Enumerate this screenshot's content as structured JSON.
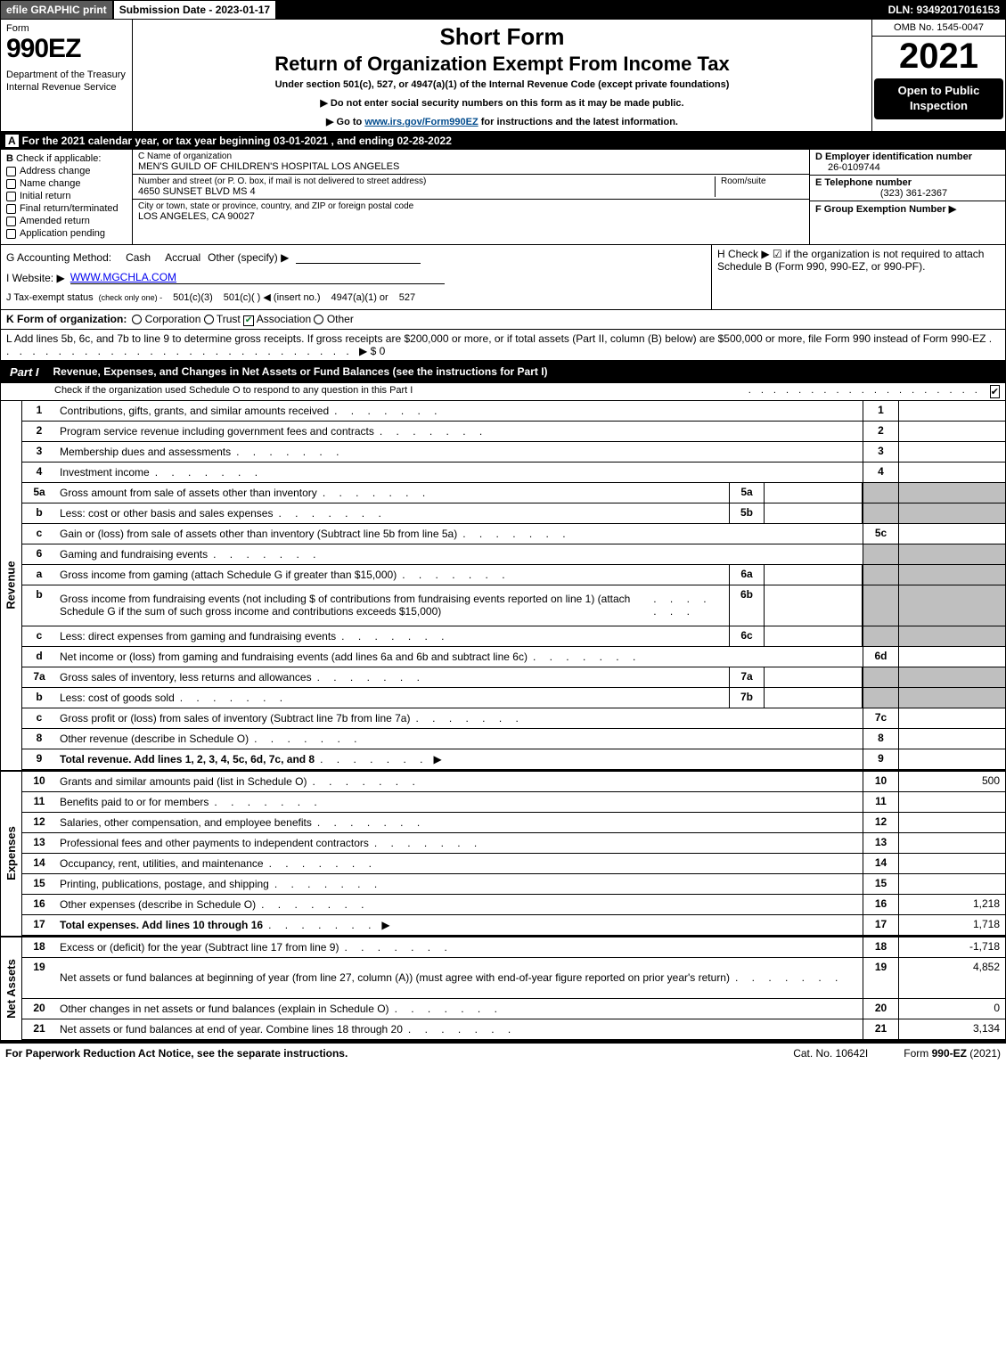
{
  "topbar": {
    "efile": "efile GRAPHIC print",
    "submission": "Submission Date - 2023-01-17",
    "dln": "DLN: 93492017016153"
  },
  "header": {
    "form_word": "Form",
    "form_num": "990EZ",
    "dept": "Department of the Treasury\nInternal Revenue Service",
    "short_form": "Short Form",
    "return_title": "Return of Organization Exempt From Income Tax",
    "under": "Under section 501(c), 527, or 4947(a)(1) of the Internal Revenue Code (except private foundations)",
    "ssn": "▶ Do not enter social security numbers on this form as it may be made public.",
    "goto_pre": "▶ Go to ",
    "goto_link": "www.irs.gov/Form990EZ",
    "goto_post": " for instructions and the latest information.",
    "omb": "OMB No. 1545-0047",
    "year": "2021",
    "badge": "Open to Public Inspection"
  },
  "rowA": {
    "label": "A",
    "text": "For the 2021 calendar year, or tax year beginning 03-01-2021 , and ending 02-28-2022"
  },
  "colB": {
    "label": "B",
    "title": "Check if applicable:",
    "items": [
      "Address change",
      "Name change",
      "Initial return",
      "Final return/terminated",
      "Amended return",
      "Application pending"
    ]
  },
  "colC": {
    "name_lbl": "C Name of organization",
    "name": "MEN'S GUILD OF CHILDREN'S HOSPITAL LOS ANGELES",
    "street_lbl": "Number and street (or P. O. box, if mail is not delivered to street address)",
    "room_lbl": "Room/suite",
    "street": "4650 SUNSET BLVD MS 4",
    "city_lbl": "City or town, state or province, country, and ZIP or foreign postal code",
    "city": "LOS ANGELES, CA  90027"
  },
  "colDEF": {
    "d_lbl": "D Employer identification number",
    "d_val": "26-0109744",
    "e_lbl": "E Telephone number",
    "e_val": "(323) 361-2367",
    "f_lbl": "F Group Exemption Number   ▶"
  },
  "ghrow": {
    "g_label": "G Accounting Method:",
    "g_cash": "Cash",
    "g_accrual": "Accrual",
    "g_other": "Other (specify) ▶",
    "h_text": "H  Check ▶ ☑ if the organization is not required to attach Schedule B (Form 990, 990-EZ, or 990-PF)."
  },
  "rowI": {
    "label": "I Website: ▶",
    "val": "WWW.MGCHLA.COM"
  },
  "rowJ": {
    "label": "J Tax-exempt status",
    "note": "(check only one) -",
    "o1": "501(c)(3)",
    "o2": "501(c)(  ) ◀ (insert no.)",
    "o3": "4947(a)(1) or",
    "o4": "527"
  },
  "rowK": {
    "label": "K Form of organization:",
    "opts": [
      "Corporation",
      "Trust",
      "Association",
      "Other"
    ],
    "checked_idx": 2
  },
  "rowL": {
    "text": "L Add lines 5b, 6c, and 7b to line 9 to determine gross receipts. If gross receipts are $200,000 or more, or if total assets (Part II, column (B) below) are $500,000 or more, file Form 990 instead of Form 990-EZ",
    "val": "▶ $ 0"
  },
  "part1": {
    "tag": "Part I",
    "title": "Revenue, Expenses, and Changes in Net Assets or Fund Balances (see the instructions for Part I)",
    "check_line": "Check if the organization used Schedule O to respond to any question in this Part I"
  },
  "sections": {
    "revenue": {
      "label": "Revenue",
      "lines": [
        {
          "n": "1",
          "d": "Contributions, gifts, grants, and similar amounts received",
          "rn": "1",
          "rv": ""
        },
        {
          "n": "2",
          "d": "Program service revenue including government fees and contracts",
          "rn": "2",
          "rv": ""
        },
        {
          "n": "3",
          "d": "Membership dues and assessments",
          "rn": "3",
          "rv": ""
        },
        {
          "n": "4",
          "d": "Investment income",
          "rn": "4",
          "rv": ""
        },
        {
          "n": "5a",
          "d": "Gross amount from sale of assets other than inventory",
          "sn": "5a",
          "sv": "",
          "shade": true
        },
        {
          "n": "b",
          "d": "Less: cost or other basis and sales expenses",
          "sn": "5b",
          "sv": "",
          "shade": true
        },
        {
          "n": "c",
          "d": "Gain or (loss) from sale of assets other than inventory (Subtract line 5b from line 5a)",
          "rn": "5c",
          "rv": ""
        },
        {
          "n": "6",
          "d": "Gaming and fundraising events",
          "shade": true,
          "noamt": true
        },
        {
          "n": "a",
          "d": "Gross income from gaming (attach Schedule G if greater than $15,000)",
          "sn": "6a",
          "sv": "",
          "shade": true
        },
        {
          "n": "b",
          "d": "Gross income from fundraising events (not including $                of contributions from fundraising events reported on line 1) (attach Schedule G if the sum of such gross income and contributions exceeds $15,000)",
          "sn": "6b",
          "sv": "",
          "shade": true,
          "tall": true
        },
        {
          "n": "c",
          "d": "Less: direct expenses from gaming and fundraising events",
          "sn": "6c",
          "sv": "",
          "shade": true
        },
        {
          "n": "d",
          "d": "Net income or (loss) from gaming and fundraising events (add lines 6a and 6b and subtract line 6c)",
          "rn": "6d",
          "rv": ""
        },
        {
          "n": "7a",
          "d": "Gross sales of inventory, less returns and allowances",
          "sn": "7a",
          "sv": "",
          "shade": true
        },
        {
          "n": "b",
          "d": "Less: cost of goods sold",
          "sn": "7b",
          "sv": "",
          "shade": true
        },
        {
          "n": "c",
          "d": "Gross profit or (loss) from sales of inventory (Subtract line 7b from line 7a)",
          "rn": "7c",
          "rv": ""
        },
        {
          "n": "8",
          "d": "Other revenue (describe in Schedule O)",
          "rn": "8",
          "rv": ""
        },
        {
          "n": "9",
          "d": "Total revenue. Add lines 1, 2, 3, 4, 5c, 6d, 7c, and 8",
          "rn": "9",
          "rv": "",
          "arrow": true,
          "bold": true
        }
      ]
    },
    "expenses": {
      "label": "Expenses",
      "lines": [
        {
          "n": "10",
          "d": "Grants and similar amounts paid (list in Schedule O)",
          "rn": "10",
          "rv": "500"
        },
        {
          "n": "11",
          "d": "Benefits paid to or for members",
          "rn": "11",
          "rv": ""
        },
        {
          "n": "12",
          "d": "Salaries, other compensation, and employee benefits",
          "rn": "12",
          "rv": ""
        },
        {
          "n": "13",
          "d": "Professional fees and other payments to independent contractors",
          "rn": "13",
          "rv": ""
        },
        {
          "n": "14",
          "d": "Occupancy, rent, utilities, and maintenance",
          "rn": "14",
          "rv": ""
        },
        {
          "n": "15",
          "d": "Printing, publications, postage, and shipping",
          "rn": "15",
          "rv": ""
        },
        {
          "n": "16",
          "d": "Other expenses (describe in Schedule O)",
          "rn": "16",
          "rv": "1,218"
        },
        {
          "n": "17",
          "d": "Total expenses. Add lines 10 through 16",
          "rn": "17",
          "rv": "1,718",
          "arrow": true,
          "bold": true
        }
      ]
    },
    "netassets": {
      "label": "Net Assets",
      "lines": [
        {
          "n": "18",
          "d": "Excess or (deficit) for the year (Subtract line 17 from line 9)",
          "rn": "18",
          "rv": "-1,718"
        },
        {
          "n": "19",
          "d": "Net assets or fund balances at beginning of year (from line 27, column (A)) (must agree with end-of-year figure reported on prior year's return)",
          "rn": "19",
          "rv": "4,852",
          "tall": true
        },
        {
          "n": "20",
          "d": "Other changes in net assets or fund balances (explain in Schedule O)",
          "rn": "20",
          "rv": "0"
        },
        {
          "n": "21",
          "d": "Net assets or fund balances at end of year. Combine lines 18 through 20",
          "rn": "21",
          "rv": "3,134"
        }
      ]
    }
  },
  "footer": {
    "left": "For Paperwork Reduction Act Notice, see the separate instructions.",
    "mid": "Cat. No. 10642I",
    "right": "Form 990-EZ (2021)"
  },
  "colors": {
    "black": "#000000",
    "gray_topbar": "#5a5a5a",
    "shade": "#bfbfbf",
    "link": "#004b8d",
    "check": "#0a7a2a"
  }
}
